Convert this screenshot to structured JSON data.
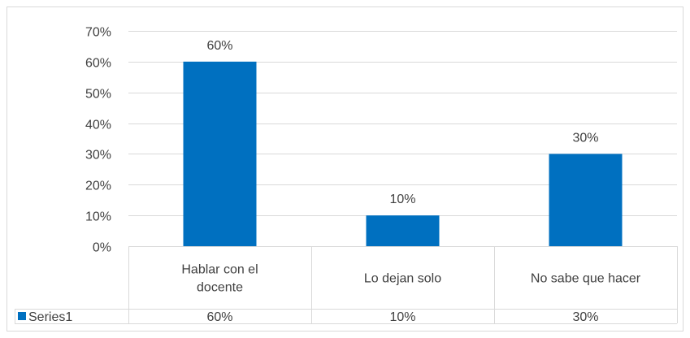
{
  "chart_data": {
    "type": "bar",
    "categories": [
      "Hablar con el docente",
      "Lo dejan solo",
      "No sabe que hacer"
    ],
    "category_lines": [
      [
        "Hablar con el",
        "docente"
      ],
      [
        "Lo dejan solo"
      ],
      [
        "No sabe que hacer"
      ]
    ],
    "series": [
      {
        "name": "Series1",
        "values": [
          60,
          10,
          30
        ],
        "labels": [
          "60%",
          "10%",
          "30%"
        ],
        "color": "#0070C0"
      }
    ],
    "yticks": [
      "0%",
      "10%",
      "20%",
      "30%",
      "40%",
      "50%",
      "60%",
      "70%"
    ],
    "ylim": [
      0,
      70
    ],
    "ystep": 10,
    "grid": true,
    "legend": "data-table"
  }
}
